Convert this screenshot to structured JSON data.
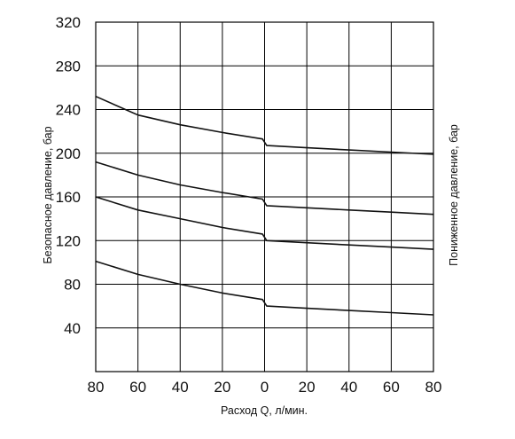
{
  "chart_data": {
    "type": "line",
    "xlabel": "Расход Q, л/мин.",
    "ylabel_left": "Безопасное давление, бар",
    "ylabel_right": "Пониженное давление, бар",
    "x_tick_labels": [
      "80",
      "60",
      "40",
      "20",
      "0",
      "20",
      "40",
      "60",
      "80"
    ],
    "y_tick_labels": [
      "40",
      "80",
      "120",
      "160",
      "200",
      "240",
      "280",
      "320"
    ],
    "x_positions": [
      -80,
      -60,
      -40,
      -20,
      0,
      20,
      40,
      60,
      80
    ],
    "xlim": [
      -80,
      80
    ],
    "ylim": [
      0,
      320
    ],
    "y_ticks": [
      40,
      80,
      120,
      160,
      200,
      240,
      280,
      320
    ],
    "grid": true,
    "series": [
      {
        "x": [
          -80,
          -60,
          -40,
          -20,
          -1,
          1,
          20,
          40,
          60,
          80
        ],
        "y": [
          252,
          235,
          226,
          219,
          213,
          207,
          205,
          203,
          201,
          199
        ]
      },
      {
        "x": [
          -80,
          -60,
          -40,
          -20,
          -1,
          1,
          20,
          40,
          60,
          80
        ],
        "y": [
          192,
          180,
          171,
          164,
          158,
          152,
          150,
          148,
          146,
          144
        ]
      },
      {
        "x": [
          -80,
          -60,
          -40,
          -20,
          -1,
          1,
          20,
          40,
          60,
          80
        ],
        "y": [
          160,
          148,
          140,
          132,
          126,
          120,
          118,
          116,
          114,
          112
        ]
      },
      {
        "x": [
          -80,
          -60,
          -40,
          -20,
          -1,
          1,
          20,
          40,
          60,
          80
        ],
        "y": [
          101,
          89,
          80,
          72,
          66,
          60,
          58,
          56,
          54,
          52
        ]
      }
    ]
  }
}
